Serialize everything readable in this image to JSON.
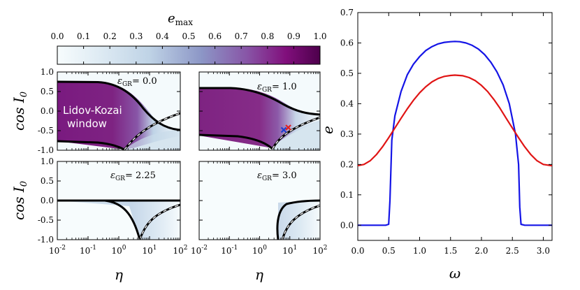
{
  "chart_data": [
    {
      "type": "heatmap-colorbar",
      "label": "e_max",
      "label_main": "e",
      "label_sub": "max",
      "range": [
        0.0,
        1.0
      ],
      "ticks": [
        "0.0",
        "0.1",
        "0.2",
        "0.3",
        "0.4",
        "0.5",
        "0.6",
        "0.7",
        "0.8",
        "0.9",
        "1.0"
      ],
      "colors": {
        "low": "#f7fcfd",
        "mid": "#8c96c6",
        "high": "#4d004b"
      }
    },
    {
      "type": "heatmap",
      "panels": [
        {
          "id": "a",
          "eps_label": "ε",
          "eps_sub": "GR",
          "eps_value": "= 0.0",
          "annotation_line1": "Lidov-Kozai",
          "annotation_line2": "window"
        },
        {
          "id": "b",
          "eps_label": "ε",
          "eps_sub": "GR",
          "eps_value": "= 1.0",
          "markers": [
            {
              "eta": 6.3,
              "cosI": -0.48,
              "color": "#1f3fd0"
            },
            {
              "eta": 8.9,
              "cosI": -0.42,
              "color": "#e02020"
            }
          ]
        },
        {
          "id": "c",
          "eps_label": "ε",
          "eps_sub": "GR",
          "eps_value": "= 2.25"
        },
        {
          "id": "d",
          "eps_label": "ε",
          "eps_sub": "GR",
          "eps_value": "= 3.0"
        }
      ],
      "xlabel": "η",
      "ylabel": "cos I",
      "ylabel_sub": "0",
      "xscale": "log",
      "xlim": [
        0.01,
        100
      ],
      "ylim": [
        -1.0,
        1.0
      ],
      "xticks": [
        {
          "base": "10",
          "exp": "-2"
        },
        {
          "base": "10",
          "exp": "-1"
        },
        {
          "base": "10",
          "exp": "0"
        },
        {
          "base": "10",
          "exp": "1"
        },
        {
          "base": "10",
          "exp": "2"
        }
      ],
      "yticks": [
        "1.0",
        "0.5",
        "0.0",
        "-0.5",
        "-1.0"
      ]
    },
    {
      "type": "line",
      "xlabel": "ω",
      "ylabel": "e",
      "xlim": [
        0.0,
        3.14159
      ],
      "ylim": [
        -0.05,
        0.7
      ],
      "xticks": [
        "0.0",
        "0.5",
        "1.0",
        "1.5",
        "2.0",
        "2.5",
        "3.0"
      ],
      "yticks": [
        "0.0",
        "0.1",
        "0.2",
        "0.3",
        "0.4",
        "0.5",
        "0.6",
        "0.7"
      ],
      "series": [
        {
          "name": "blue",
          "color": "#1414e6",
          "x": [
            0.0,
            0.45,
            0.5,
            0.52,
            0.55,
            0.6,
            0.7,
            0.8,
            0.9,
            1.0,
            1.1,
            1.2,
            1.3,
            1.4,
            1.5,
            1.5708,
            1.65,
            1.75,
            1.85,
            1.95,
            2.05,
            2.15,
            2.25,
            2.35,
            2.45,
            2.55,
            2.6,
            2.62,
            2.64,
            2.7,
            3.1416
          ],
          "y": [
            0.0,
            0.0,
            0.003,
            0.08,
            0.28,
            0.36,
            0.44,
            0.495,
            0.53,
            0.555,
            0.575,
            0.588,
            0.597,
            0.602,
            0.604,
            0.605,
            0.604,
            0.6,
            0.592,
            0.58,
            0.562,
            0.537,
            0.505,
            0.462,
            0.4,
            0.3,
            0.2,
            0.06,
            0.003,
            0.0,
            0.0
          ]
        },
        {
          "name": "red",
          "color": "#e01414",
          "x": [
            0.0,
            0.1,
            0.2,
            0.3,
            0.4,
            0.5,
            0.6,
            0.7,
            0.8,
            0.9,
            1.0,
            1.1,
            1.2,
            1.3,
            1.4,
            1.5,
            1.5708,
            1.7,
            1.8,
            1.9,
            2.0,
            2.1,
            2.2,
            2.3,
            2.4,
            2.5,
            2.6,
            2.7,
            2.8,
            2.9,
            3.0,
            3.1416
          ],
          "y": [
            0.196,
            0.2,
            0.212,
            0.232,
            0.258,
            0.288,
            0.32,
            0.352,
            0.383,
            0.411,
            0.436,
            0.456,
            0.472,
            0.483,
            0.49,
            0.493,
            0.494,
            0.492,
            0.486,
            0.476,
            0.46,
            0.44,
            0.414,
            0.385,
            0.352,
            0.32,
            0.288,
            0.258,
            0.232,
            0.212,
            0.2,
            0.196
          ]
        }
      ]
    }
  ]
}
